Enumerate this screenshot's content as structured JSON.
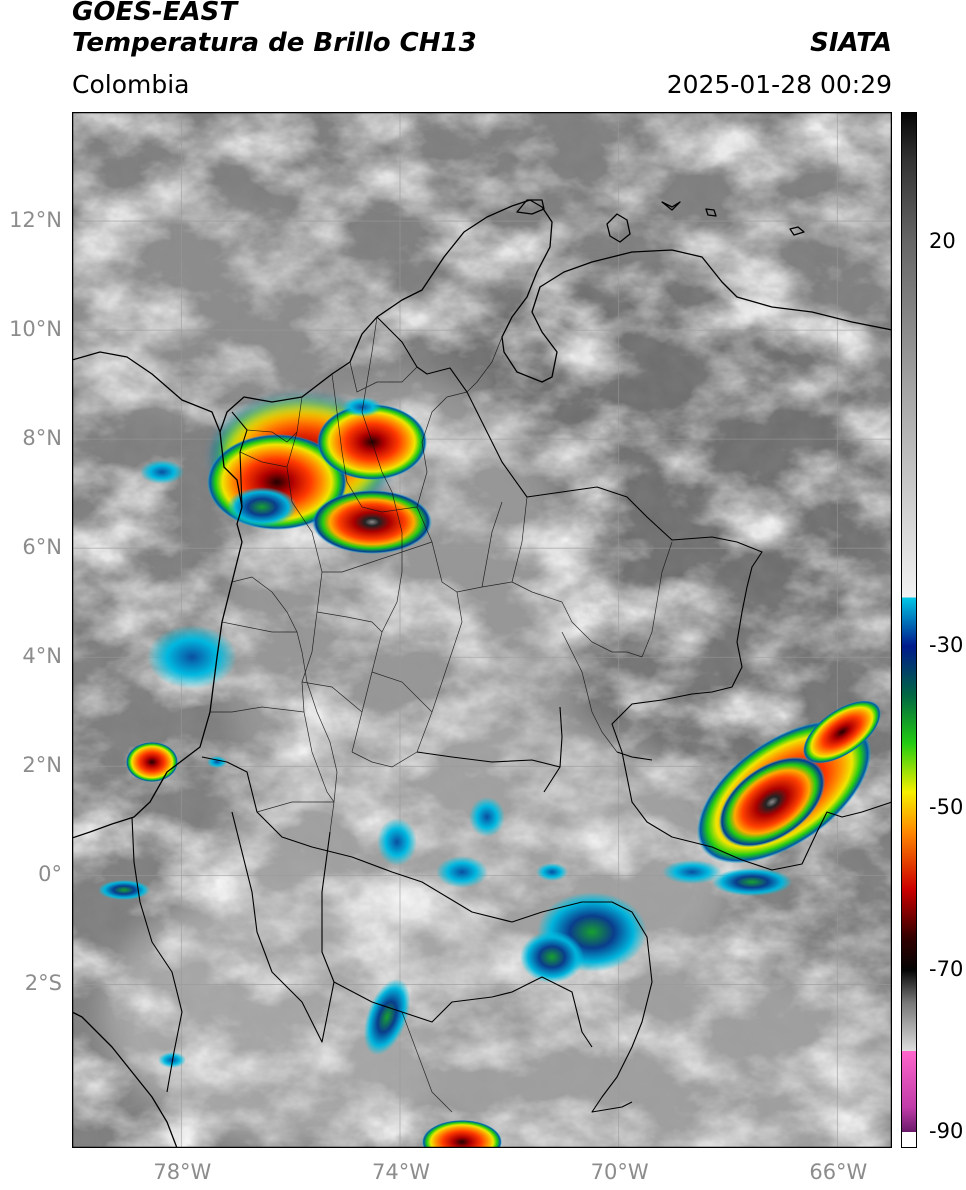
{
  "header": {
    "satellite": "GOES-EAST",
    "product": "Temperatura de Brillo CH13",
    "region": "Colombia",
    "agency": "SIATA",
    "datetime": "2025-01-28 00:29"
  },
  "map": {
    "lon_range": [
      -80,
      -65
    ],
    "lat_range": [
      -5,
      14
    ],
    "lat_ticks": [
      {
        "value": 12,
        "label": "12°N"
      },
      {
        "value": 10,
        "label": "10°N"
      },
      {
        "value": 8,
        "label": "8°N"
      },
      {
        "value": 6,
        "label": "6°N"
      },
      {
        "value": 4,
        "label": "4°N"
      },
      {
        "value": 2,
        "label": "2°N"
      },
      {
        "value": 0,
        "label": "0°"
      },
      {
        "value": -2,
        "label": "2°S"
      }
    ],
    "lon_ticks": [
      {
        "value": -78,
        "label": "78°W"
      },
      {
        "value": -74,
        "label": "74°W"
      },
      {
        "value": -70,
        "label": "70°W"
      },
      {
        "value": -66,
        "label": "66°W"
      }
    ],
    "grid": true
  },
  "colorbar": {
    "range": [
      -92,
      36
    ],
    "ticks": [
      {
        "value": 20,
        "label": "20"
      },
      {
        "value": -30,
        "label": "-30"
      },
      {
        "value": -50,
        "label": "-50"
      },
      {
        "value": -70,
        "label": "-70"
      },
      {
        "value": -90,
        "label": "-90"
      }
    ],
    "colors": {
      "dark": "#050505",
      "light": "#f2f2f2",
      "cyan": "#00c8e6",
      "blue": "#001a8c",
      "green": "#22cc11",
      "yellow": "#f5f000",
      "orange": "#ff8800",
      "red": "#cc0000",
      "darkred": "#330000",
      "magenta": "#c03ca8"
    }
  }
}
